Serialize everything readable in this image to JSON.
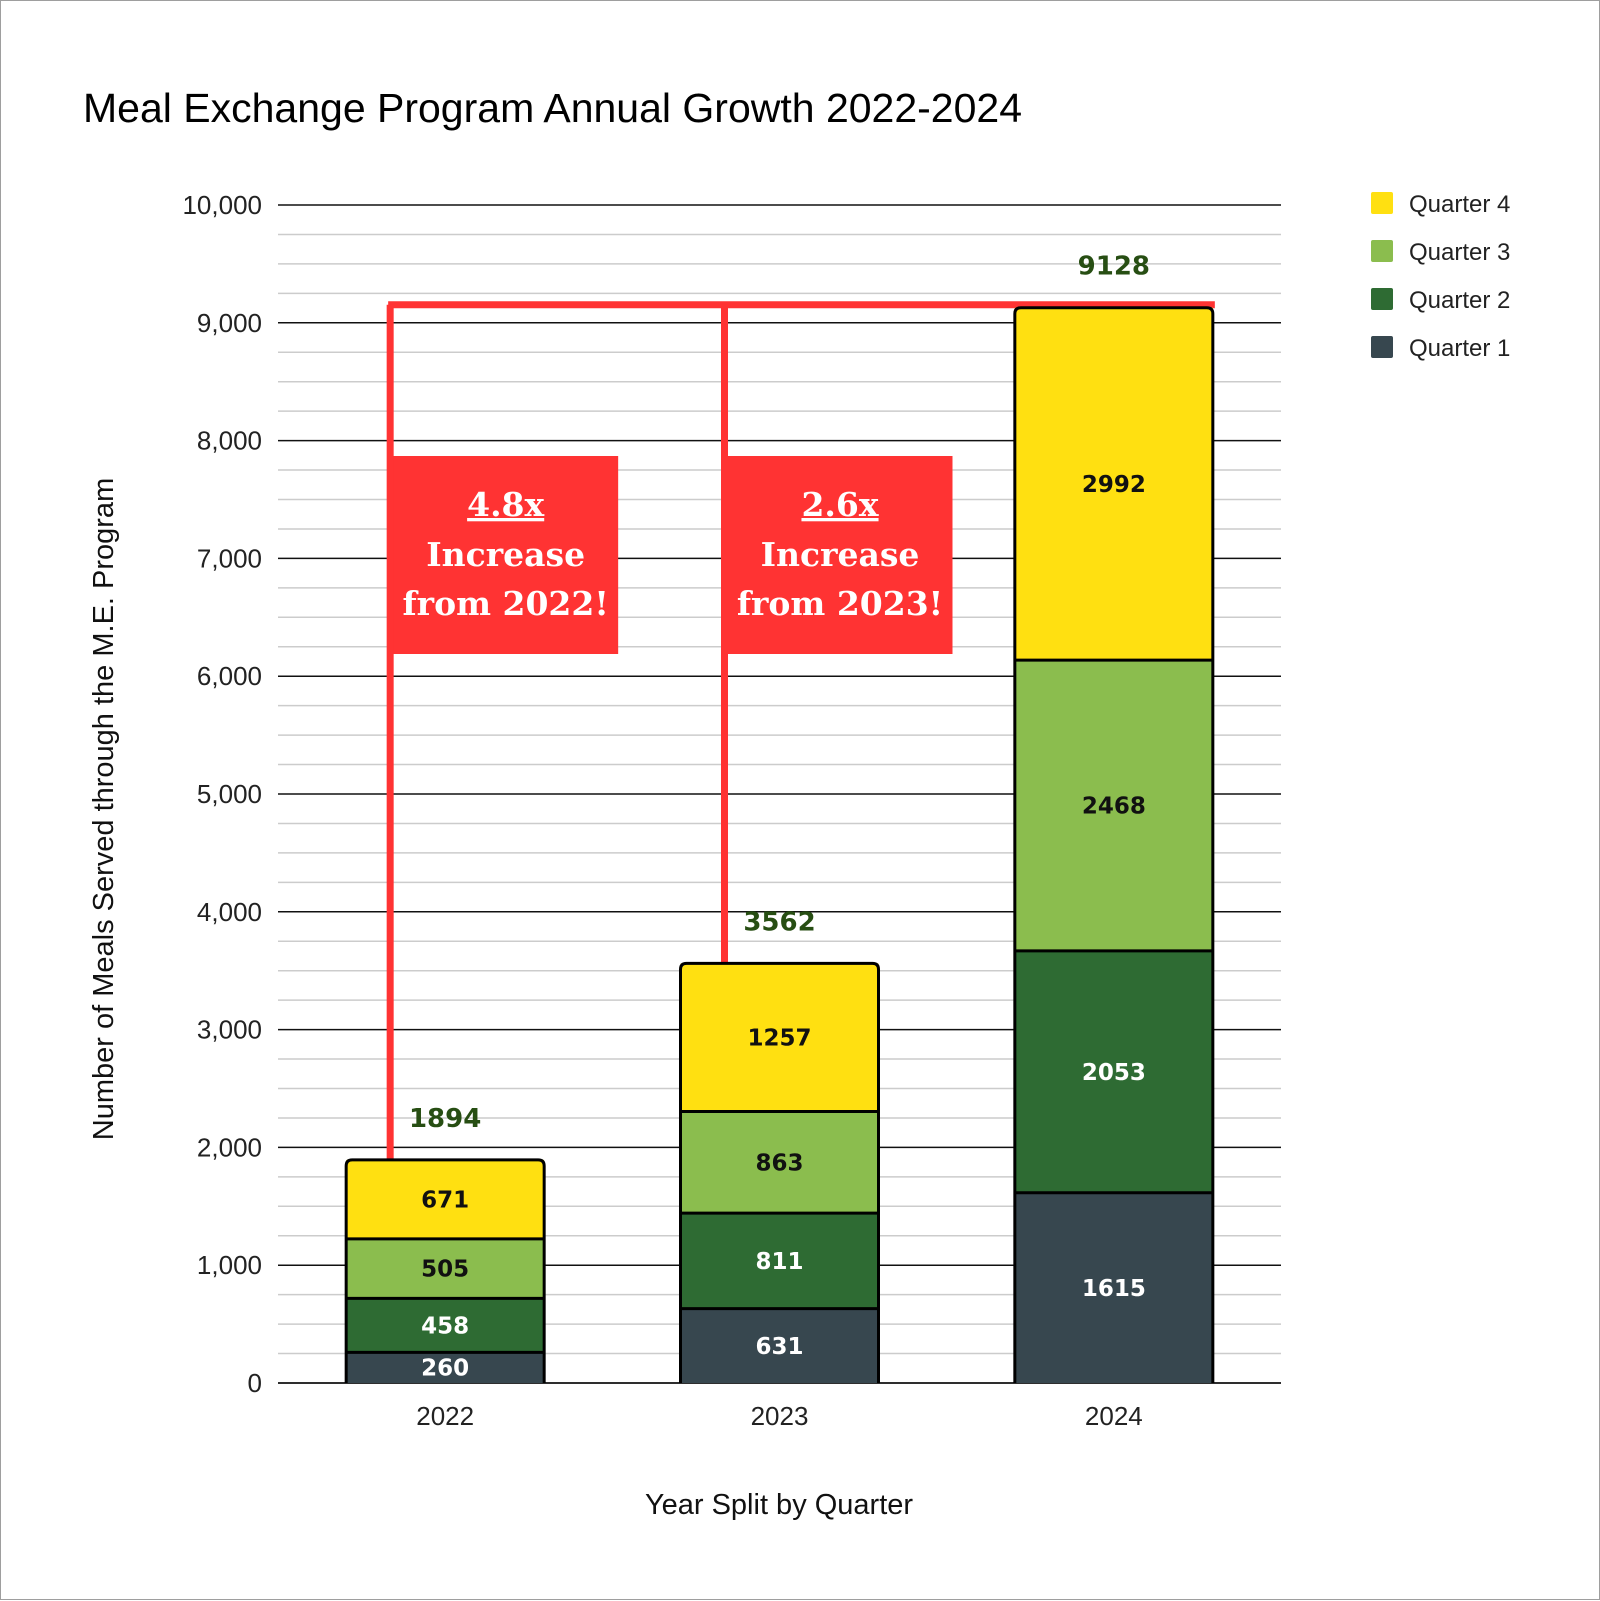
{
  "chart_data": {
    "type": "bar",
    "stacked": true,
    "title": "Meal Exchange Program Annual Growth 2022-2024",
    "xlabel": "Year Split by Quarter",
    "ylabel": "Number of Meals Served through the M.E. Program",
    "categories": [
      "2022",
      "2023",
      "2024"
    ],
    "ylim": [
      0,
      10000
    ],
    "yticks": [
      0,
      1000,
      2000,
      3000,
      4000,
      5000,
      6000,
      7000,
      8000,
      9000,
      10000
    ],
    "ytick_labels": [
      "0",
      "1,000",
      "2,000",
      "3,000",
      "4,000",
      "5,000",
      "6,000",
      "7,000",
      "8,000",
      "9,000",
      "10,000"
    ],
    "grid": true,
    "legend_position": "top-right",
    "series": [
      {
        "name": "Quarter 1",
        "color": "#37474f",
        "label_color": "#ffffff",
        "values": [
          260,
          631,
          1615
        ]
      },
      {
        "name": "Quarter 2",
        "color": "#2e6b33",
        "label_color": "#ffffff",
        "values": [
          458,
          811,
          2053
        ]
      },
      {
        "name": "Quarter 3",
        "color": "#8bbd4e",
        "label_color": "#111111",
        "values": [
          505,
          863,
          2468
        ]
      },
      {
        "name": "Quarter 4",
        "color": "#ffe011",
        "label_color": "#111111",
        "values": [
          671,
          1257,
          2992
        ]
      }
    ],
    "totals": [
      1894,
      3562,
      9128
    ],
    "legend_order": [
      "Quarter 4",
      "Quarter 3",
      "Quarter 2",
      "Quarter 1"
    ],
    "annotations": [
      {
        "from_category": "2022",
        "to_category": "2024",
        "factor": "4.8x",
        "line1": "Increase",
        "line2": "from 2022!"
      },
      {
        "from_category": "2023",
        "to_category": "2024",
        "factor": "2.6x",
        "line1": "Increase",
        "line2": "from 2023!"
      }
    ],
    "annotation_color": "#ff3333"
  }
}
